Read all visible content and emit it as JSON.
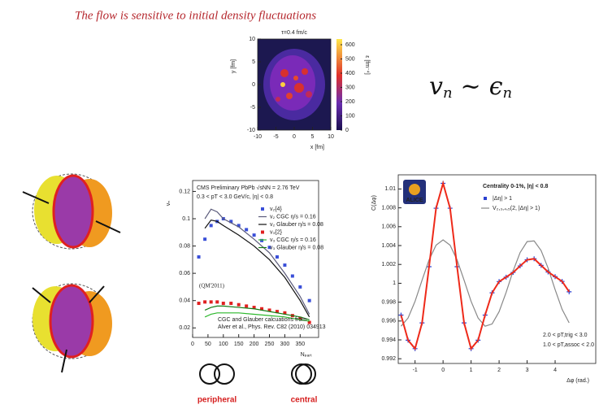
{
  "title": "The flow is sensitive to initial density fluctuations",
  "formula": {
    "lhs": "v",
    "lhs_sub": "n",
    "op": "~",
    "rhs": "ϵ",
    "rhs_sub": "n"
  },
  "labels": {
    "peripheral": "peripheral",
    "central": "central"
  },
  "chart_data": [
    {
      "type": "heatmap",
      "title": "τ=0.4 fm/c",
      "xlabel": "x [fm]",
      "ylabel": "y [fm]",
      "colorbar_label": "ε [fm⁻⁴]",
      "xlim": [
        -10,
        10
      ],
      "xticks": [
        -10,
        -5,
        0,
        5,
        10
      ],
      "ylim": [
        -10,
        10
      ],
      "yticks": [
        -10,
        -5,
        0,
        5,
        10
      ],
      "clim": [
        0,
        640
      ],
      "cticks": [
        0,
        100,
        200,
        300,
        400,
        500,
        600
      ]
    },
    {
      "type": "line",
      "xlabel": "Nₚₐᵣₜ",
      "ylabel": "vₙ",
      "annotations": [
        "CMS Preliminary PbPb √sNN = 2.76 TeV",
        "0.3 < pT < 3.0 GeV/c, |η| < 0.8",
        "(QM'2011)",
        "CGC and Glauber calcuations from",
        "Alver et al., Phys. Rev. C82 (2010) 034913"
      ],
      "xlim": [
        0,
        410
      ],
      "xticks": [
        0,
        50,
        100,
        150,
        200,
        250,
        300,
        350
      ],
      "ylim": [
        0.013,
        0.128
      ],
      "yticks": [
        0.02,
        0.04,
        0.06,
        0.08,
        0.1,
        0.12
      ],
      "series": [
        {
          "name": "v₂{4}",
          "color": "#3a4fd8",
          "style": "points",
          "x": [
            20,
            40,
            60,
            80,
            100,
            125,
            150,
            175,
            200,
            225,
            250,
            275,
            300,
            325,
            350,
            380
          ],
          "values": [
            0.072,
            0.085,
            0.095,
            0.098,
            0.1,
            0.098,
            0.095,
            0.092,
            0.088,
            0.084,
            0.079,
            0.072,
            0.066,
            0.058,
            0.05,
            0.04
          ]
        },
        {
          "name": "v₂ CGC η/s = 0.16",
          "color": "#5a5a7a",
          "style": "line",
          "x": [
            40,
            60,
            80,
            100,
            150,
            200,
            250,
            300,
            350,
            380
          ],
          "values": [
            0.1,
            0.107,
            0.105,
            0.1,
            0.094,
            0.085,
            0.075,
            0.06,
            0.043,
            0.03
          ]
        },
        {
          "name": "v₂ Glauber η/s = 0.08",
          "color": "#111111",
          "style": "line",
          "x": [
            40,
            60,
            80,
            100,
            150,
            200,
            250,
            300,
            350,
            380
          ],
          "values": [
            0.093,
            0.099,
            0.098,
            0.095,
            0.088,
            0.08,
            0.07,
            0.057,
            0.04,
            0.028
          ]
        },
        {
          "name": "v₃{2}",
          "color": "#e02020",
          "style": "points",
          "x": [
            20,
            40,
            60,
            80,
            100,
            125,
            150,
            175,
            200,
            225,
            250,
            275,
            300,
            325,
            350,
            380
          ],
          "values": [
            0.038,
            0.039,
            0.039,
            0.039,
            0.038,
            0.038,
            0.037,
            0.036,
            0.035,
            0.034,
            0.033,
            0.032,
            0.031,
            0.029,
            0.027,
            0.024
          ]
        },
        {
          "name": "v₃ CGC η/s = 0.16",
          "color": "#2db82d",
          "style": "line",
          "x": [
            40,
            60,
            80,
            100,
            150,
            200,
            250,
            300,
            350,
            380
          ],
          "values": [
            0.028,
            0.03,
            0.031,
            0.031,
            0.031,
            0.03,
            0.029,
            0.028,
            0.026,
            0.025
          ]
        },
        {
          "name": "v₃ Glauber η/s = 0.08",
          "color": "#127a12",
          "style": "line",
          "x": [
            40,
            60,
            80,
            100,
            150,
            200,
            250,
            300,
            350,
            380
          ],
          "values": [
            0.033,
            0.035,
            0.036,
            0.036,
            0.035,
            0.034,
            0.032,
            0.03,
            0.028,
            0.026
          ]
        }
      ]
    },
    {
      "type": "line",
      "title": "Centrality 0-1%, |η| < 0.8",
      "xlabel": "Δφ (rad.)",
      "ylabel": "C(Δφ)",
      "logo": "ALICE",
      "annotations": [
        "2.0 < pT,trig < 3.0",
        "1.0 < pT,assoc < 2.0"
      ],
      "xlim": [
        -1.6,
        5.45
      ],
      "xticks": [
        -1,
        0,
        1,
        2,
        3,
        4
      ],
      "ylim": [
        0.9915,
        1.0115
      ],
      "yticks": [
        0.992,
        0.994,
        0.996,
        0.998,
        1,
        1.002,
        1.004,
        1.006,
        1.008,
        1.01
      ],
      "series": [
        {
          "name": "|Δη| > 1",
          "color": "#2a3fd0",
          "style": "plus",
          "x": [
            -1.5,
            -1.25,
            -1,
            -0.75,
            -0.5,
            -0.25,
            0,
            0.25,
            0.5,
            0.75,
            1,
            1.25,
            1.5,
            1.75,
            2,
            2.25,
            2.5,
            2.75,
            3,
            3.25,
            3.5,
            3.75,
            4,
            4.25,
            4.5
          ],
          "values": [
            0.99663,
            0.99397,
            0.99307,
            0.9958,
            1.00176,
            1.00796,
            1.0106,
            1.00796,
            1.00176,
            0.9958,
            0.99307,
            0.99397,
            0.99663,
            0.99899,
            1.00018,
            1.00065,
            1.00115,
            1.00184,
            1.00249,
            1.0026,
            1.0019,
            1.0012,
            1.0007,
            1.0002,
            0.9991
          ]
        },
        {
          "name": "V₂,₃,₄,₅(2, |Δη| > 1)",
          "color": "#888888",
          "style": "line",
          "x": [
            -1.5,
            -1.25,
            -1,
            -0.75,
            -0.5,
            -0.25,
            0,
            0.25,
            0.5,
            0.75,
            1,
            1.25,
            1.5,
            1.75,
            2,
            2.25,
            2.5,
            2.75,
            3,
            3.25,
            3.5,
            3.75,
            4,
            4.25,
            4.5
          ],
          "values": [
            0.99545,
            0.99632,
            0.99809,
            1.00033,
            1.00248,
            1.00404,
            1.0046,
            1.00404,
            1.00248,
            1.00033,
            0.99809,
            0.99632,
            0.99545,
            0.99569,
            0.99699,
            0.99903,
            1.00131,
            1.00326,
            1.00442,
            1.00449,
            1.00347,
            1.0016,
            0.99933,
            0.99723,
            0.99581
          ]
        },
        {
          "color": "#ee2a1a",
          "style": "line",
          "x": [
            -1.5,
            -1.25,
            -1,
            -0.75,
            -0.5,
            -0.25,
            0,
            0.25,
            0.5,
            0.75,
            1,
            1.25,
            1.5,
            1.75,
            2,
            2.25,
            2.5,
            2.75,
            3,
            3.25,
            3.5,
            3.75,
            4,
            4.25,
            4.5
          ],
          "values": [
            0.99663,
            0.99397,
            0.99307,
            0.9958,
            1.00176,
            1.00796,
            1.0106,
            1.00796,
            1.00176,
            0.9958,
            0.99307,
            0.99397,
            0.99663,
            0.99899,
            1.00018,
            1.00065,
            1.00115,
            1.00184,
            1.00249,
            1.0026,
            1.0019,
            1.0012,
            1.0007,
            1.0002,
            0.9991
          ]
        }
      ]
    }
  ]
}
